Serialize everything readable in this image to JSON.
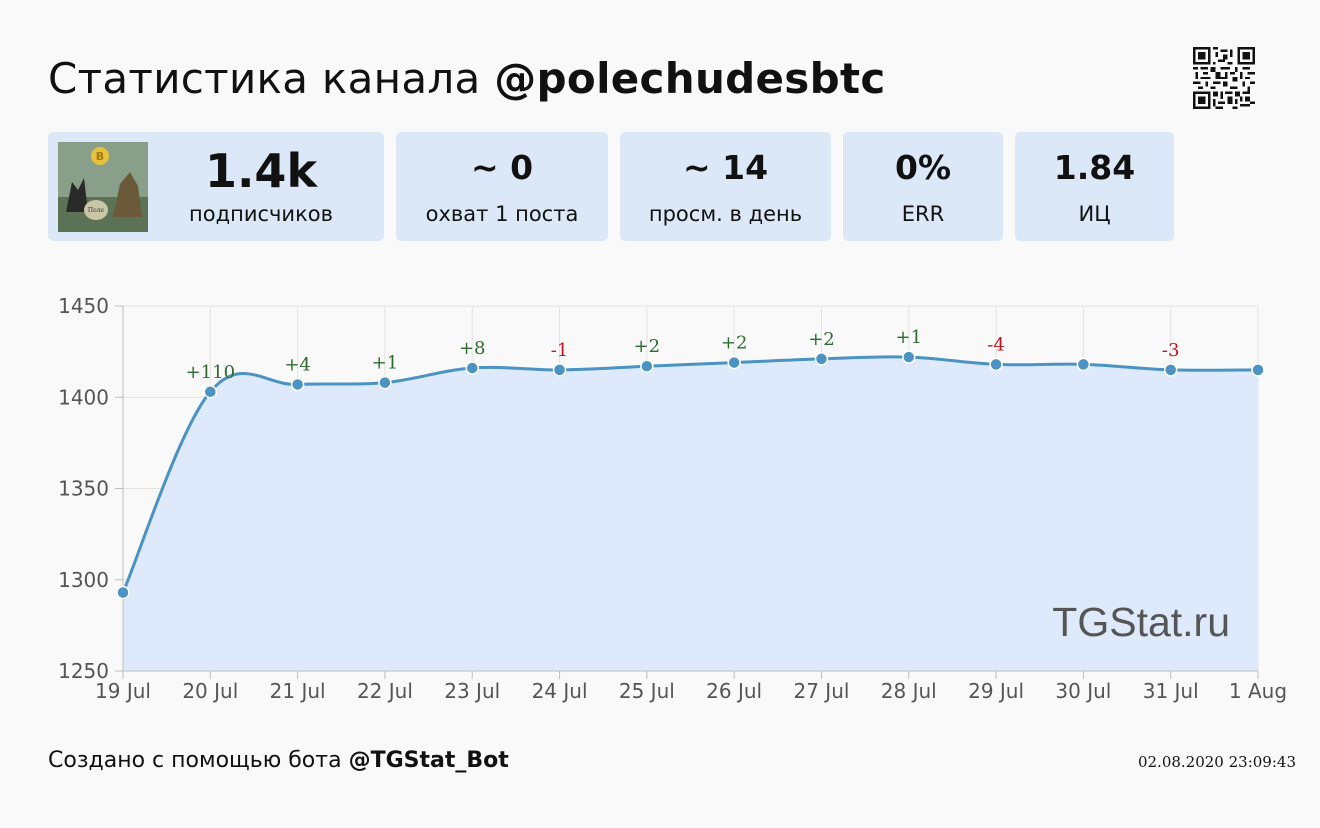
{
  "header": {
    "title_prefix": "Статистика канала",
    "channel": "@polechudesbtc"
  },
  "stats": [
    {
      "value": "1.4k",
      "label": "подписчиков"
    },
    {
      "value": "~ 0",
      "label": "охват 1 поста"
    },
    {
      "value": "~ 14",
      "label": "просм. в день"
    },
    {
      "value": "0%",
      "label": "ERR"
    },
    {
      "value": "1.84",
      "label": "ИЦ"
    }
  ],
  "chart_data": {
    "type": "area",
    "x": [
      "19 Jul",
      "20 Jul",
      "21 Jul",
      "22 Jul",
      "23 Jul",
      "24 Jul",
      "25 Jul",
      "26 Jul",
      "27 Jul",
      "28 Jul",
      "29 Jul",
      "30 Jul",
      "31 Jul",
      "1 Aug"
    ],
    "values": [
      1293,
      1403,
      1407,
      1408,
      1416,
      1415,
      1417,
      1419,
      1421,
      1422,
      1418,
      1418,
      1415,
      1415
    ],
    "annotations": [
      "",
      "+110",
      "+4",
      "+1",
      "+8",
      "-1",
      "+2",
      "+2",
      "+2",
      "+1",
      "-4",
      "",
      "-3",
      ""
    ],
    "ylim": [
      1250,
      1450
    ],
    "yticks": [
      "1250",
      "1300",
      "1350",
      "1400",
      "1450"
    ],
    "grid": true,
    "line_color": "#4a93c2",
    "fill_color": "#deeafb",
    "positive_color": "#2e6b2e",
    "negative_color": "#c0141c",
    "watermark": "TGStat.ru"
  },
  "footer": {
    "prefix": "Создано с помощью бота",
    "bot": "@TGStat_Bot",
    "timestamp": "02.08.2020 23:09:43"
  }
}
